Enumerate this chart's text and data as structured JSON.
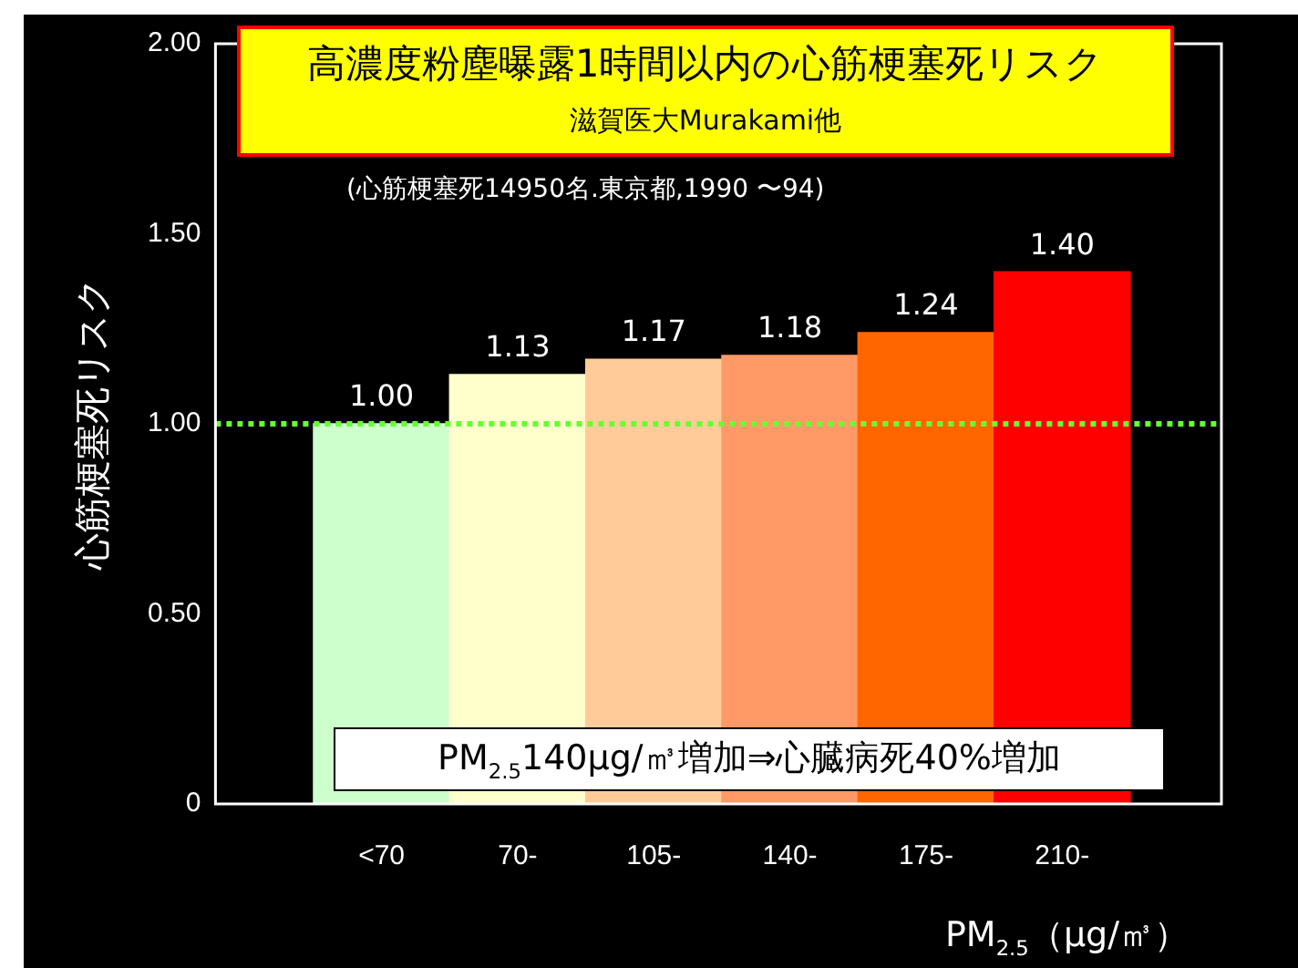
{
  "chart_data": {
    "type": "bar",
    "title": "高濃度粉塵曝露1時間以内の心筋梗塞死リスク",
    "subtitle": "滋賀医大Murakami他",
    "annotations": [
      "(心筋梗塞死14950名.東京都,1990 〜94)",
      "PM$_{2.5}$140μg/㎥増加⇒心臓病死40%増加"
    ],
    "xlabel": "PM$_{2.5}$（μg/㎥）",
    "ylabel": "心筋梗塞死リスク",
    "categories": [
      "<70",
      "70-",
      "105-",
      "140-",
      "175-",
      "210-"
    ],
    "values": [
      1.0,
      1.13,
      1.17,
      1.18,
      1.24,
      1.4
    ],
    "value_labels": [
      "1.00",
      "1.13",
      "1.17",
      "1.18",
      "1.24",
      "1.40"
    ],
    "colors": [
      "#ccffcc",
      "#ffffcc",
      "#ffcc99",
      "#ff9966",
      "#ff6600",
      "#ff0000"
    ],
    "ylim": [
      0,
      2
    ],
    "yticks": [
      0,
      {
        "value": 0.5,
        "label": "0.50"
      },
      {
        "value": 1,
        "label": "1.00"
      },
      {
        "value": 1.5,
        "label": "1.50"
      },
      {
        "value": 2,
        "label": "2.00"
      }
    ],
    "ref_lines": [
      {
        "axis": "y",
        "value": 1,
        "color": "#66ff33",
        "line_style": "dotted"
      }
    ],
    "grid": false,
    "legend": false
  }
}
